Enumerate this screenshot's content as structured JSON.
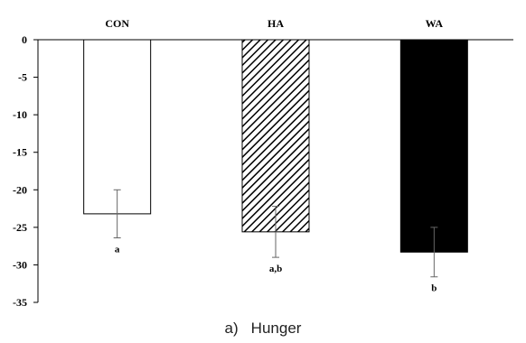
{
  "chart_data": {
    "type": "bar",
    "categories": [
      "CON",
      "HA",
      "WA"
    ],
    "values": [
      -23.2,
      -25.6,
      -28.3
    ],
    "errors": [
      3.2,
      3.4,
      3.3
    ],
    "significance": [
      "a",
      "a,b",
      "b"
    ],
    "fills": [
      "#ffffff",
      "hatch",
      "#000000"
    ],
    "ylim": [
      -35,
      0
    ],
    "yticks": [
      0,
      -5,
      -10,
      -15,
      -20,
      -25,
      -30,
      -35
    ],
    "category_position": "top",
    "grid": false,
    "title": "",
    "xlabel": "",
    "ylabel": ""
  },
  "caption": {
    "number": "a)",
    "text": "Hunger"
  }
}
